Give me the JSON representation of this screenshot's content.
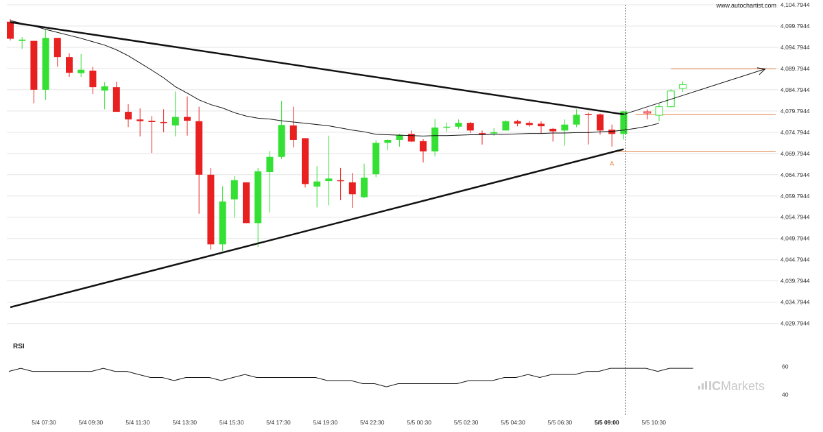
{
  "watermark": "www.autochartist.com",
  "brand": {
    "prefix": "IC",
    "suffix": "Markets"
  },
  "colors": {
    "up": "#33e033",
    "down": "#e82020",
    "pattern": "#111111",
    "level": "#e08040",
    "ma": "#111111",
    "grid": "#e5e5e5"
  },
  "chart_data": {
    "type": "candlestick",
    "title": "",
    "ylim": [
      4027.7944,
      4104.7944
    ],
    "y_ticks": [
      "4,104.7944",
      "4,099.7944",
      "4,094.7944",
      "4,089.7944",
      "4,084.7944",
      "4,079.7944",
      "4,074.7944",
      "4,069.7944",
      "4,064.7944",
      "4,059.7944",
      "4,054.7944",
      "4,049.7944",
      "4,044.7944",
      "4,039.7944",
      "4,034.7944",
      "4,029.7944"
    ],
    "x_ticks": [
      "5/4 07:30",
      "5/4 09:30",
      "5/4 11:30",
      "5/4 13:30",
      "5/4 15:30",
      "5/4 17:30",
      "5/4 19:30",
      "5/4 22:30",
      "5/5 00:30",
      "5/5 02:30",
      "5/5 04:30",
      "5/5 06:30",
      "5/5 09:00",
      "5/5 10:30"
    ],
    "x_tick_bold_index": 12,
    "candles": [
      {
        "o": 4100.8,
        "h": 4101.4,
        "l": 4096.4,
        "c": 4096.8
      },
      {
        "o": 4096.3,
        "h": 4097.2,
        "l": 4094.4,
        "c": 4096.6
      },
      {
        "o": 4096.3,
        "h": 4096.3,
        "l": 4081.6,
        "c": 4084.8
      },
      {
        "o": 4084.8,
        "h": 4098.9,
        "l": 4082.4,
        "c": 4097.0
      },
      {
        "o": 4097.0,
        "h": 4097.0,
        "l": 4090.2,
        "c": 4092.5
      },
      {
        "o": 4092.5,
        "h": 4093.4,
        "l": 4087.8,
        "c": 4088.8
      },
      {
        "o": 4088.7,
        "h": 4093.2,
        "l": 4087.8,
        "c": 4089.5
      },
      {
        "o": 4089.3,
        "h": 4090.2,
        "l": 4083.8,
        "c": 4085.4
      },
      {
        "o": 4084.6,
        "h": 4086.6,
        "l": 4080.2,
        "c": 4085.6
      },
      {
        "o": 4085.4,
        "h": 4086.7,
        "l": 4079.6,
        "c": 4079.6
      },
      {
        "o": 4079.6,
        "h": 4081.4,
        "l": 4076.0,
        "c": 4077.8
      },
      {
        "o": 4077.8,
        "h": 4080.4,
        "l": 4073.8,
        "c": 4077.4
      },
      {
        "o": 4077.5,
        "h": 4078.6,
        "l": 4069.9,
        "c": 4077.2
      },
      {
        "o": 4077.2,
        "h": 4080.2,
        "l": 4074.8,
        "c": 4077.0
      },
      {
        "o": 4076.4,
        "h": 4084.4,
        "l": 4073.8,
        "c": 4078.4
      },
      {
        "o": 4078.4,
        "h": 4083.2,
        "l": 4074.0,
        "c": 4077.5
      },
      {
        "o": 4077.4,
        "h": 4080.8,
        "l": 4055.6,
        "c": 4064.8
      },
      {
        "o": 4064.8,
        "h": 4066.4,
        "l": 4047.2,
        "c": 4048.4
      },
      {
        "o": 4048.4,
        "h": 4062.1,
        "l": 4046.8,
        "c": 4058.5
      },
      {
        "o": 4059.0,
        "h": 4064.5,
        "l": 4054.7,
        "c": 4063.5
      },
      {
        "o": 4063.0,
        "h": 4063.0,
        "l": 4053.4,
        "c": 4053.4
      },
      {
        "o": 4053.4,
        "h": 4066.4,
        "l": 4047.8,
        "c": 4065.6
      },
      {
        "o": 4065.4,
        "h": 4070.4,
        "l": 4055.9,
        "c": 4069.0
      },
      {
        "o": 4069.0,
        "h": 4082.2,
        "l": 4068.5,
        "c": 4076.5
      },
      {
        "o": 4076.4,
        "h": 4080.8,
        "l": 4071.2,
        "c": 4073.0
      },
      {
        "o": 4073.4,
        "h": 4073.4,
        "l": 4061.8,
        "c": 4062.6
      },
      {
        "o": 4062.0,
        "h": 4066.8,
        "l": 4057.1,
        "c": 4063.2
      },
      {
        "o": 4063.3,
        "h": 4074.0,
        "l": 4057.6,
        "c": 4063.9
      },
      {
        "o": 4063.5,
        "h": 4066.4,
        "l": 4058.8,
        "c": 4063.3
      },
      {
        "o": 4063.0,
        "h": 4065.2,
        "l": 4057.0,
        "c": 4060.2
      },
      {
        "o": 4059.5,
        "h": 4067.4,
        "l": 4059.3,
        "c": 4064.1
      },
      {
        "o": 4064.9,
        "h": 4072.9,
        "l": 4064.2,
        "c": 4072.3
      },
      {
        "o": 4072.3,
        "h": 4073.1,
        "l": 4070.5,
        "c": 4073.0
      },
      {
        "o": 4073.0,
        "h": 4074.4,
        "l": 4071.4,
        "c": 4074.2
      },
      {
        "o": 4074.4,
        "h": 4075.2,
        "l": 4072.5,
        "c": 4072.6
      },
      {
        "o": 4072.7,
        "h": 4073.2,
        "l": 4067.7,
        "c": 4070.3
      },
      {
        "o": 4070.3,
        "h": 4077.9,
        "l": 4069.1,
        "c": 4075.9
      },
      {
        "o": 4076.0,
        "h": 4077.1,
        "l": 4074.9,
        "c": 4076.1
      },
      {
        "o": 4076.1,
        "h": 4077.8,
        "l": 4075.6,
        "c": 4077.0
      },
      {
        "o": 4077.0,
        "h": 4077.2,
        "l": 4074.6,
        "c": 4075.2
      },
      {
        "o": 4074.6,
        "h": 4075.2,
        "l": 4071.9,
        "c": 4074.4
      },
      {
        "o": 4074.5,
        "h": 4075.8,
        "l": 4073.9,
        "c": 4074.8
      },
      {
        "o": 4075.2,
        "h": 4077.6,
        "l": 4075.2,
        "c": 4077.4
      },
      {
        "o": 4077.4,
        "h": 4077.7,
        "l": 4076.2,
        "c": 4076.8
      },
      {
        "o": 4077.0,
        "h": 4077.5,
        "l": 4076.1,
        "c": 4076.5
      },
      {
        "o": 4076.8,
        "h": 4077.4,
        "l": 4074.4,
        "c": 4076.2
      },
      {
        "o": 4075.6,
        "h": 4075.8,
        "l": 4072.6,
        "c": 4075.0
      },
      {
        "o": 4075.2,
        "h": 4077.8,
        "l": 4071.6,
        "c": 4076.6
      },
      {
        "o": 4076.6,
        "h": 4080.2,
        "l": 4076.0,
        "c": 4078.9
      },
      {
        "o": 4079.1,
        "h": 4079.4,
        "l": 4071.9,
        "c": 4079.0
      },
      {
        "o": 4079.0,
        "h": 4079.2,
        "l": 4074.2,
        "c": 4075.2
      },
      {
        "o": 4075.4,
        "h": 4076.6,
        "l": 4071.4,
        "c": 4074.4
      },
      {
        "o": 4074.4,
        "h": 4079.8,
        "l": 4073.1,
        "c": 4079.7
      }
    ],
    "forecast_candles": [
      {
        "o": 4079.6,
        "h": 4080.2,
        "l": 4077.8,
        "c": 4079.3,
        "dir": "down"
      },
      {
        "o": 4078.8,
        "h": 4081.4,
        "l": 4077.4,
        "c": 4080.8,
        "dir": "up"
      },
      {
        "o": 4080.8,
        "h": 4084.9,
        "l": 4080.6,
        "c": 4084.5,
        "dir": "up"
      },
      {
        "o": 4085.1,
        "h": 4086.8,
        "l": 4084.3,
        "c": 4086.0,
        "dir": "up"
      }
    ],
    "moving_average": [
      4101.1,
      4100.4,
      4099.8,
      4099.0,
      4098.3,
      4097.6,
      4096.9,
      4096.1,
      4095.3,
      4094.2,
      4092.8,
      4091.1,
      4089.4,
      4087.6,
      4085.5,
      4084.0,
      4082.4,
      4081.3,
      4080.5,
      4079.4,
      4078.6,
      4078.1,
      4077.9,
      4077.5,
      4077.2,
      4076.9,
      4076.6,
      4076.3,
      4075.8,
      4075.3,
      4074.9,
      4074.3,
      4074.2,
      4074.1,
      4074.0,
      4073.9,
      4074.0,
      4074.0,
      4074.1,
      4074.2,
      4074.2,
      4074.3,
      4074.3,
      4074.4,
      4074.5,
      4074.5,
      4074.6,
      4074.6,
      4074.7,
      4074.7,
      4074.9,
      4075.0,
      4075.3,
      4075.7,
      4076.2,
      4076.9
    ],
    "pattern_upper": {
      "from": [
        0,
        4100.7
      ],
      "to": [
        52,
        4079.0
      ]
    },
    "pattern_lower": {
      "from": [
        0,
        4033.6
      ],
      "to": [
        52,
        4070.8
      ]
    },
    "breakout_arrow": {
      "from": [
        52,
        4079.0
      ],
      "to": [
        64,
        4089.7
      ]
    },
    "levels": [
      {
        "value": 4089.7,
        "from": 56
      },
      {
        "value": 4079.0,
        "from": 53
      },
      {
        "value": 4070.3,
        "from": 51
      }
    ],
    "point_label": {
      "text": "A",
      "index": 51,
      "value": 4068.2
    },
    "rsi": {
      "label": "RSI",
      "ylim": [
        33,
        67
      ],
      "ticks": [
        60,
        40
      ],
      "values": [
        56.5,
        58.7,
        56.5,
        56.5,
        56.5,
        56.5,
        56.5,
        56.5,
        58.7,
        56.5,
        56.5,
        54.3,
        52.2,
        52.2,
        50.0,
        52.2,
        52.2,
        52.2,
        50.0,
        52.2,
        54.3,
        52.2,
        52.2,
        52.2,
        52.2,
        52.2,
        52.2,
        50.0,
        50.0,
        50.0,
        47.8,
        47.8,
        45.6,
        47.8,
        47.8,
        47.8,
        47.8,
        47.8,
        47.8,
        50.0,
        50.0,
        50.0,
        52.2,
        52.2,
        54.3,
        52.2,
        54.3,
        54.3,
        54.3,
        56.5,
        56.5,
        58.7,
        58.7,
        58.7,
        58.7,
        56.5,
        58.7,
        58.7,
        58.7
      ]
    }
  }
}
